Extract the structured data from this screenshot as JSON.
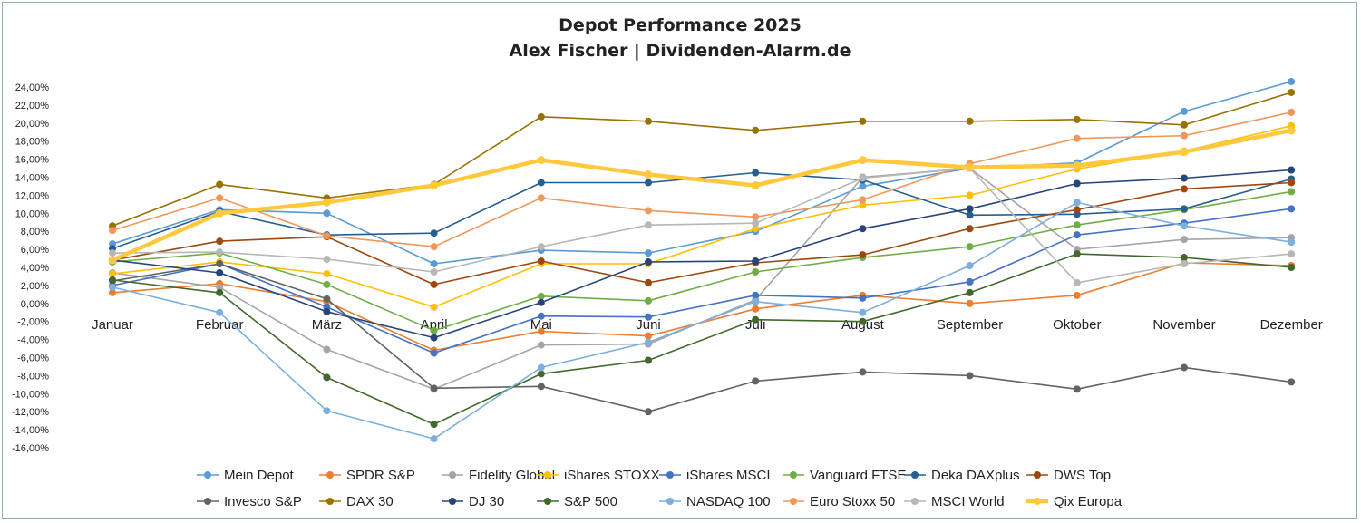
{
  "chart_data": {
    "type": "line",
    "title": "Depot Performance 2025",
    "subtitle": "Alex Fischer | Dividenden-Alarm.de",
    "xlabel": "",
    "ylabel": "",
    "ylim": [
      -16,
      24
    ],
    "y_tick_labels": [
      "24,00%",
      "22,00%",
      "20,00%",
      "18,00%",
      "16,00%",
      "14,00%",
      "12,00%",
      "10,00%",
      "8,00%",
      "6,00%",
      "4,00%",
      "2,00%",
      "0,00%",
      "-2,00%",
      "-4,00%",
      "-6,00%",
      "-8,00%",
      "-10,00%",
      "-12,00%",
      "-14,00%",
      "-16,00%"
    ],
    "categories": [
      "Januar",
      "Februar",
      "März",
      "April",
      "Mai",
      "Juni",
      "Juli",
      "August",
      "September",
      "Oktober",
      "November",
      "Dezember"
    ],
    "grid": false,
    "legend_position": "bottom",
    "series": [
      {
        "name": "Mein Depot",
        "color": "#5b9bd5",
        "values": [
          6.6,
          10.4,
          10.0,
          4.4,
          5.9,
          5.6,
          8.0,
          13.0,
          15.0,
          15.6,
          21.3,
          24.6
        ]
      },
      {
        "name": "SPDR S&P",
        "color": "#ed7d31",
        "values": [
          1.2,
          2.2,
          0.2,
          -5.2,
          -3.1,
          -3.6,
          -0.6,
          0.9,
          0.0,
          0.9,
          4.5,
          4.2
        ]
      },
      {
        "name": "Fidelity Global",
        "color": "#a5a5a5",
        "values": [
          3.4,
          1.8,
          -5.1,
          -9.5,
          -4.6,
          -4.5,
          0.4,
          14.0,
          15.0,
          6.0,
          7.1,
          7.3
        ]
      },
      {
        "name": "iShares STOXX",
        "color": "#ffc000",
        "values": [
          3.3,
          4.6,
          3.3,
          -0.4,
          4.4,
          4.4,
          8.3,
          10.9,
          12.0,
          14.9,
          16.9,
          19.7
        ]
      },
      {
        "name": "iShares MSCI",
        "color": "#4472c4",
        "values": [
          2.0,
          4.4,
          -0.4,
          -5.5,
          -1.4,
          -1.5,
          0.9,
          0.6,
          2.4,
          7.6,
          8.9,
          10.5
        ]
      },
      {
        "name": "Vanguard FTSE",
        "color": "#70ad47",
        "values": [
          4.6,
          5.6,
          2.1,
          -3.0,
          0.8,
          0.3,
          3.5,
          5.1,
          6.3,
          8.7,
          10.4,
          12.4
        ]
      },
      {
        "name": "Deka DAXplus",
        "color": "#255e91",
        "values": [
          6.1,
          10.2,
          7.6,
          7.8,
          13.4,
          13.4,
          14.5,
          13.7,
          9.8,
          9.9,
          10.5,
          13.8
        ]
      },
      {
        "name": "DWS Top",
        "color": "#9e480e",
        "values": [
          4.8,
          6.9,
          7.4,
          2.1,
          4.7,
          2.3,
          4.5,
          5.4,
          8.3,
          10.4,
          12.7,
          13.4
        ]
      },
      {
        "name": "Invesco S&P",
        "color": "#636363",
        "values": [
          2.5,
          4.4,
          0.5,
          -9.4,
          -9.2,
          -12.0,
          -8.6,
          -7.6,
          -8.0,
          -9.5,
          -7.1,
          -8.7
        ]
      },
      {
        "name": "DAX 30",
        "color": "#997300",
        "values": [
          8.6,
          13.2,
          11.7,
          13.2,
          20.7,
          20.2,
          19.2,
          20.2,
          20.2,
          20.4,
          19.8,
          23.4
        ]
      },
      {
        "name": "DJ 30",
        "color": "#264478",
        "values": [
          4.8,
          3.4,
          -0.9,
          -3.8,
          0.1,
          4.6,
          4.7,
          8.3,
          10.5,
          13.3,
          13.9,
          14.8
        ]
      },
      {
        "name": "S&P 500",
        "color": "#43682b",
        "values": [
          2.6,
          1.2,
          -8.2,
          -13.4,
          -7.8,
          -6.3,
          -1.8,
          -2.0,
          1.2,
          5.5,
          5.1,
          4.0
        ]
      },
      {
        "name": "NASDAQ 100",
        "color": "#7cafdd",
        "values": [
          1.8,
          -1.0,
          -11.9,
          -15.0,
          -7.1,
          -4.3,
          0.2,
          -1.0,
          4.2,
          11.2,
          8.6,
          6.8
        ]
      },
      {
        "name": "Euro Stoxx 50",
        "color": "#f1975a",
        "values": [
          8.1,
          11.7,
          7.5,
          6.3,
          11.7,
          10.3,
          9.6,
          11.5,
          15.5,
          18.3,
          18.6,
          21.2
        ]
      },
      {
        "name": "MSCI World",
        "color": "#b7b7b7",
        "values": [
          5.6,
          5.7,
          4.9,
          3.5,
          6.3,
          8.7,
          8.9,
          13.9,
          15.0,
          2.3,
          4.4,
          5.5
        ]
      },
      {
        "name": "Qix Europa",
        "color": "#ffc83d",
        "values": [
          4.8,
          10.0,
          11.2,
          13.1,
          15.9,
          14.3,
          13.1,
          15.9,
          15.1,
          15.3,
          16.8,
          19.2
        ]
      }
    ]
  }
}
